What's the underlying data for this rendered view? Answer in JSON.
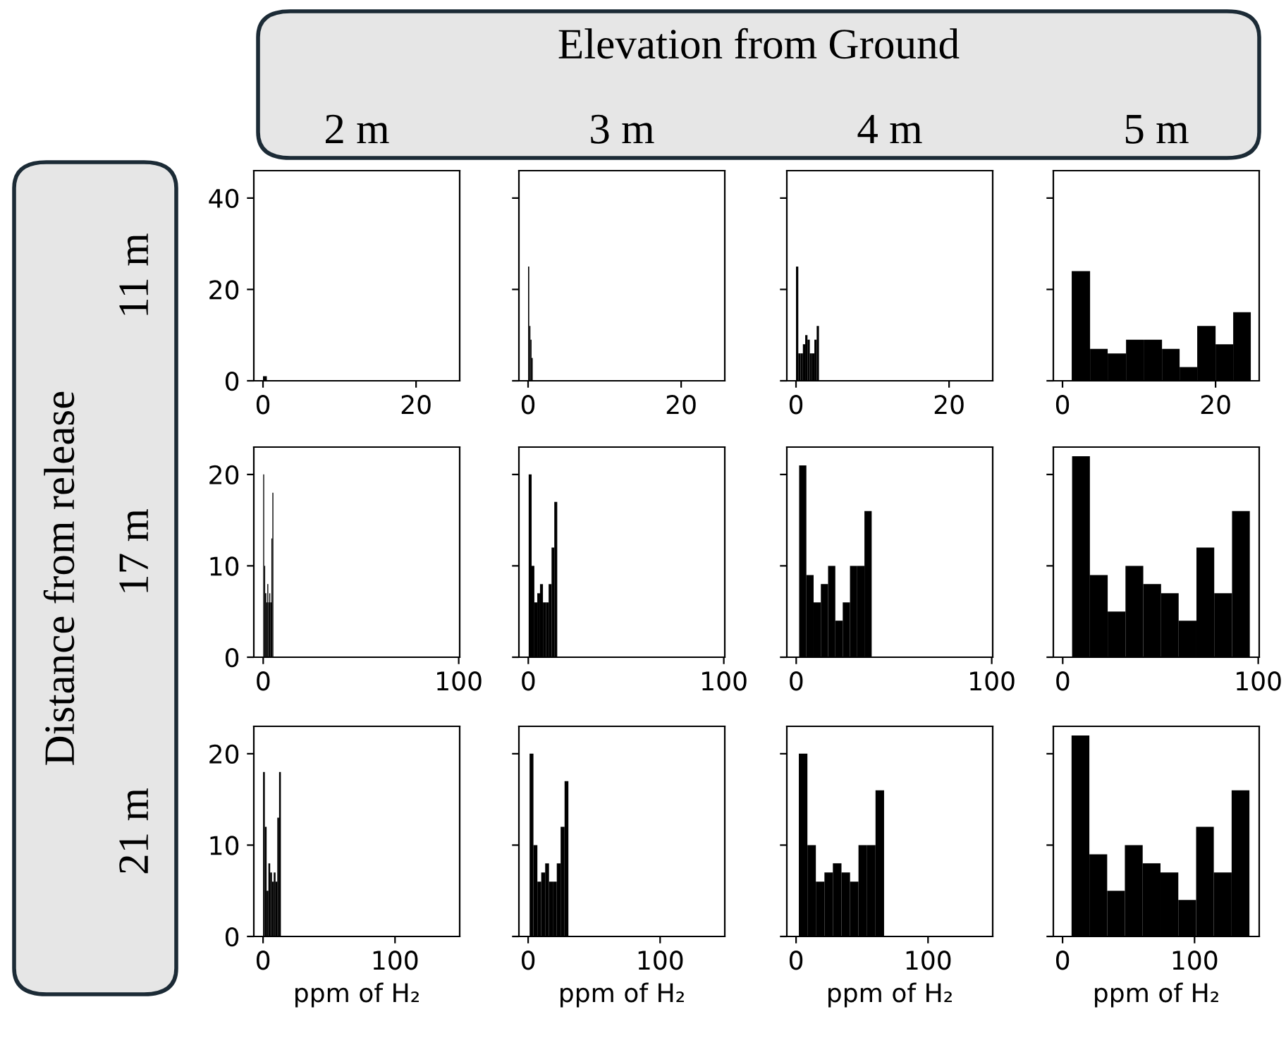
{
  "chart_data": [
    {
      "type": "histogram",
      "title": "2 m",
      "ylabel": "11 m",
      "annotations": [
        "Elevation from Ground",
        "Distance from release"
      ],
      "bins": [
        0,
        0.5
      ],
      "values": [
        1
      ],
      "color": "#000000",
      "xlim": [
        -1.2,
        25.7
      ],
      "ylim": [
        0,
        46
      ],
      "xticks": [
        0,
        20
      ],
      "yticks": [
        0,
        20,
        40
      ],
      "grid": false
    },
    {
      "type": "histogram",
      "title": "3 m",
      "bins": [
        0,
        0.15,
        0.3,
        0.45,
        0.6
      ],
      "values": [
        25,
        12,
        9,
        5
      ],
      "color": "#000000",
      "xlim": [
        -1.2,
        25.7
      ],
      "ylim": [
        0,
        46
      ],
      "xticks": [
        0,
        20
      ],
      "yticks": [
        0,
        20,
        40
      ],
      "tick_labels": "x",
      "grid": false
    },
    {
      "type": "histogram",
      "title": "4 m",
      "bins": [
        0,
        0.3,
        0.6,
        0.9,
        1.2,
        1.5,
        1.8,
        2.1,
        2.4,
        2.7,
        3.0
      ],
      "values": [
        25,
        6,
        6,
        8,
        10,
        9,
        6,
        6,
        9,
        12
      ],
      "color": "#000000",
      "xlim": [
        -1.2,
        25.7
      ],
      "ylim": [
        0,
        46
      ],
      "xticks": [
        0,
        20
      ],
      "yticks": [
        0,
        20,
        40
      ],
      "tick_labels": "x",
      "grid": false
    },
    {
      "type": "histogram",
      "title": "5 m",
      "bins": [
        1.2,
        3.6,
        5.9,
        8.3,
        10.6,
        13.0,
        15.3,
        17.6,
        20.0,
        22.3,
        24.6
      ],
      "values": [
        24,
        7,
        6,
        9,
        9,
        7,
        3,
        12,
        8,
        15
      ],
      "color": "#000000",
      "xlim": [
        -1.2,
        25.7
      ],
      "ylim": [
        0,
        46
      ],
      "xticks": [
        0,
        20
      ],
      "yticks": [
        0,
        20,
        40
      ],
      "tick_labels": "x",
      "grid": false
    },
    {
      "type": "histogram",
      "ylabel": "17 m",
      "bins": [
        0,
        0.5,
        1.0,
        1.6,
        2.1,
        2.6,
        3.1,
        3.6,
        4.2,
        4.7,
        5.2
      ],
      "values": [
        20,
        10,
        7,
        6,
        8,
        6,
        7,
        6,
        13,
        18
      ],
      "color": "#000000",
      "xlim": [
        -4.8,
        100.5
      ],
      "ylim": [
        0,
        23
      ],
      "xticks": [
        0,
        100
      ],
      "yticks": [
        0,
        10,
        20
      ],
      "grid": false
    },
    {
      "type": "histogram",
      "bins": [
        0.2,
        1.7,
        3.1,
        4.6,
        6.0,
        7.5,
        9.0,
        10.4,
        11.9,
        13.3,
        14.8
      ],
      "values": [
        20,
        10,
        6,
        7,
        8,
        6,
        6,
        8,
        12,
        17
      ],
      "color": "#000000",
      "xlim": [
        -4.8,
        100.5
      ],
      "ylim": [
        0,
        23
      ],
      "xticks": [
        0,
        100
      ],
      "yticks": [
        0,
        10,
        20
      ],
      "tick_labels": "x",
      "grid": false
    },
    {
      "type": "histogram",
      "bins": [
        1.5,
        5.2,
        8.9,
        12.6,
        16.3,
        20.0,
        23.8,
        27.5,
        31.2,
        34.9,
        38.6
      ],
      "values": [
        21,
        9,
        6,
        8,
        10,
        4,
        6,
        10,
        10,
        16
      ],
      "color": "#000000",
      "xlim": [
        -4.8,
        100.5
      ],
      "ylim": [
        0,
        23
      ],
      "xticks": [
        0,
        100
      ],
      "yticks": [
        0,
        10,
        20
      ],
      "tick_labels": "x",
      "grid": false
    },
    {
      "type": "histogram",
      "bins": [
        4.8,
        13.9,
        23.0,
        32.1,
        41.2,
        50.3,
        59.3,
        68.4,
        77.5,
        86.6,
        95.7
      ],
      "values": [
        22,
        9,
        5,
        10,
        8,
        7,
        4,
        12,
        7,
        16
      ],
      "color": "#000000",
      "xlim": [
        -4.8,
        100.5
      ],
      "ylim": [
        0,
        23
      ],
      "xticks": [
        0,
        100
      ],
      "yticks": [
        0,
        10,
        20
      ],
      "tick_labels": "x",
      "grid": false
    },
    {
      "type": "histogram",
      "ylabel": "21 m",
      "xlabel": "ppm of H₂",
      "bins": [
        0,
        1.35,
        2.7,
        4.05,
        5.4,
        6.75,
        8.1,
        9.45,
        10.8,
        12.15,
        13.5
      ],
      "values": [
        18,
        12,
        5,
        8,
        7,
        6,
        7,
        6,
        13,
        18
      ],
      "color": "#000000",
      "xlim": [
        -7,
        149
      ],
      "ylim": [
        0,
        23
      ],
      "xticks": [
        0,
        100
      ],
      "yticks": [
        0,
        10,
        20
      ],
      "grid": false
    },
    {
      "type": "histogram",
      "xlabel": "ppm of H₂",
      "bins": [
        1.1,
        4.0,
        7.0,
        9.9,
        12.9,
        15.8,
        18.7,
        21.7,
        24.6,
        27.6,
        30.5
      ],
      "values": [
        20,
        10,
        6,
        7,
        8,
        6,
        6,
        8,
        12,
        17
      ],
      "color": "#000000",
      "xlim": [
        -7,
        149
      ],
      "ylim": [
        0,
        23
      ],
      "xticks": [
        0,
        100
      ],
      "yticks": [
        0,
        10,
        20
      ],
      "tick_labels": "x",
      "grid": false
    },
    {
      "type": "histogram",
      "xlabel": "ppm of H₂",
      "bins": [
        2.1,
        8.6,
        15.0,
        21.5,
        27.9,
        34.4,
        40.9,
        47.3,
        53.8,
        60.2,
        66.7
      ],
      "values": [
        20,
        10,
        6,
        7,
        8,
        7,
        6,
        10,
        10,
        16
      ],
      "color": "#000000",
      "xlim": [
        -7,
        149
      ],
      "ylim": [
        0,
        23
      ],
      "xticks": [
        0,
        100
      ],
      "yticks": [
        0,
        10,
        20
      ],
      "tick_labels": "x",
      "grid": false
    },
    {
      "type": "histogram",
      "xlabel": "ppm of H₂",
      "bins": [
        6.8,
        20.3,
        33.8,
        47.2,
        60.7,
        74.2,
        87.7,
        101.2,
        114.6,
        128.1,
        141.6
      ],
      "values": [
        22,
        9,
        5,
        10,
        8,
        7,
        4,
        12,
        7,
        16
      ],
      "color": "#000000",
      "xlim": [
        -7,
        149
      ],
      "ylim": [
        0,
        23
      ],
      "xticks": [
        0,
        100
      ],
      "yticks": [
        0,
        10,
        20
      ],
      "tick_labels": "x",
      "grid": false
    }
  ]
}
